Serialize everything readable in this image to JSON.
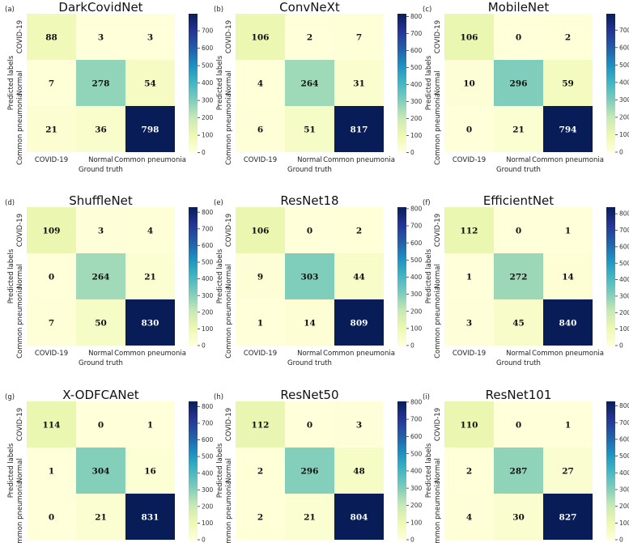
{
  "figure": {
    "classes": [
      "COVID-19",
      "Normal",
      "Common pneumonia"
    ],
    "xlabel": "Ground truth",
    "ylabel": "Predicted labels",
    "colormap": "YlGnBu",
    "colors": {
      "low": "#ffffd9",
      "high": "#081d58"
    }
  },
  "chart_data": [
    {
      "type": "heatmap",
      "panel": "(a)",
      "title": "DarkCovidNet",
      "matrix": [
        [
          88,
          3,
          3
        ],
        [
          7,
          278,
          54
        ],
        [
          21,
          36,
          798
        ]
      ],
      "colorbar_ticks": [
        0,
        100,
        200,
        300,
        400,
        500,
        600,
        700
      ],
      "vmin": 3,
      "vmax": 798
    },
    {
      "type": "heatmap",
      "panel": "(b)",
      "title": "ConvNeXt",
      "matrix": [
        [
          106,
          2,
          7
        ],
        [
          4,
          264,
          31
        ],
        [
          6,
          51,
          817
        ]
      ],
      "colorbar_ticks": [
        0,
        100,
        200,
        300,
        400,
        500,
        600,
        700,
        800
      ],
      "vmin": 2,
      "vmax": 817
    },
    {
      "type": "heatmap",
      "panel": "(c)",
      "title": "MobileNet",
      "matrix": [
        [
          106,
          0,
          2
        ],
        [
          10,
          296,
          59
        ],
        [
          0,
          21,
          794
        ]
      ],
      "colorbar_ticks": [
        0,
        100,
        200,
        300,
        400,
        500,
        600,
        700
      ],
      "vmin": 0,
      "vmax": 794
    },
    {
      "type": "heatmap",
      "panel": "(d)",
      "title": "ShuffleNet",
      "matrix": [
        [
          109,
          3,
          4
        ],
        [
          0,
          264,
          21
        ],
        [
          7,
          50,
          830
        ]
      ],
      "colorbar_ticks": [
        0,
        100,
        200,
        300,
        400,
        500,
        600,
        700,
        800
      ],
      "vmin": 0,
      "vmax": 830
    },
    {
      "type": "heatmap",
      "panel": "(e)",
      "title": "ResNet18",
      "matrix": [
        [
          106,
          0,
          2
        ],
        [
          9,
          303,
          44
        ],
        [
          1,
          14,
          809
        ]
      ],
      "colorbar_ticks": [
        0,
        100,
        200,
        300,
        400,
        500,
        600,
        700,
        800
      ],
      "vmin": 0,
      "vmax": 809
    },
    {
      "type": "heatmap",
      "panel": "(f)",
      "title": "EfficientNet",
      "matrix": [
        [
          112,
          0,
          1
        ],
        [
          1,
          272,
          14
        ],
        [
          3,
          45,
          840
        ]
      ],
      "colorbar_ticks": [
        0,
        100,
        200,
        300,
        400,
        500,
        600,
        700,
        800
      ],
      "vmin": 0,
      "vmax": 840
    },
    {
      "type": "heatmap",
      "panel": "(g)",
      "title": "X-ODFCANet",
      "matrix": [
        [
          114,
          0,
          1
        ],
        [
          1,
          304,
          16
        ],
        [
          0,
          21,
          831
        ]
      ],
      "colorbar_ticks": [
        0,
        100,
        200,
        300,
        400,
        500,
        600,
        700,
        800
      ],
      "vmin": 0,
      "vmax": 831
    },
    {
      "type": "heatmap",
      "panel": "(h)",
      "title": "ResNet50",
      "matrix": [
        [
          112,
          0,
          3
        ],
        [
          2,
          296,
          48
        ],
        [
          2,
          21,
          804
        ]
      ],
      "colorbar_ticks": [
        0,
        100,
        200,
        300,
        400,
        500,
        600,
        700,
        800
      ],
      "vmin": 0,
      "vmax": 804
    },
    {
      "type": "heatmap",
      "panel": "(i)",
      "title": "ResNet101",
      "matrix": [
        [
          110,
          0,
          1
        ],
        [
          2,
          287,
          27
        ],
        [
          4,
          30,
          827
        ]
      ],
      "colorbar_ticks": [
        0,
        100,
        200,
        300,
        400,
        500,
        600,
        700,
        800
      ],
      "vmin": 0,
      "vmax": 827
    }
  ]
}
